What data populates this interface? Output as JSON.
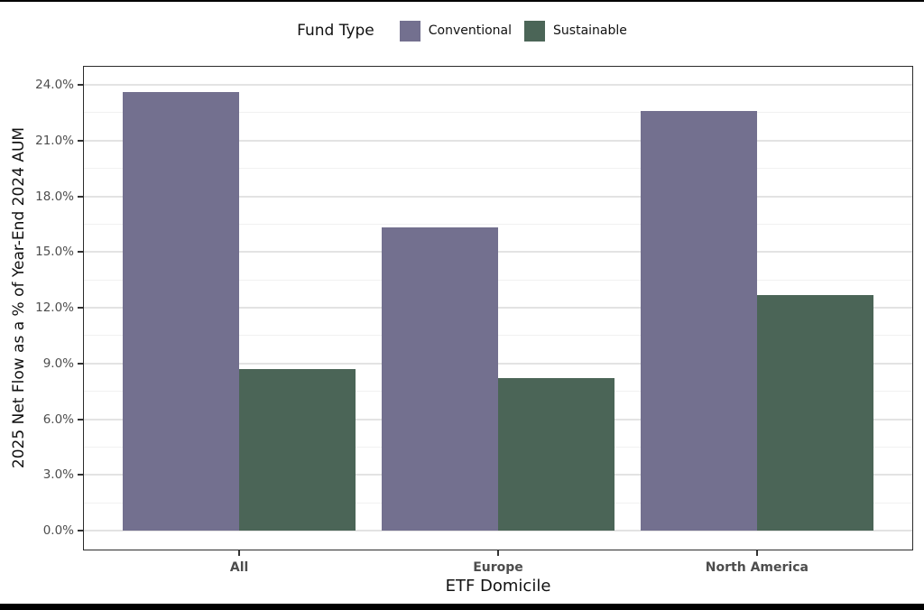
{
  "figure": {
    "background": "#ffffff",
    "top_border_color": "#000000",
    "bottom_bar_color": "#000000"
  },
  "legend": {
    "title": "Fund Type",
    "position": "top-center",
    "items": [
      {
        "label": "Conventional",
        "color": "#73708f"
      },
      {
        "label": "Sustainable",
        "color": "#4b6557"
      }
    ]
  },
  "chart_data": {
    "type": "bar",
    "title": "",
    "categories": [
      "All",
      "Europe",
      "North America"
    ],
    "series": [
      {
        "name": "Conventional",
        "color": "#73708f",
        "values": [
          23.6,
          16.3,
          22.6
        ]
      },
      {
        "name": "Sustainable",
        "color": "#4b6557",
        "values": [
          8.7,
          8.2,
          12.7
        ]
      }
    ],
    "xlabel": "ETF Domicile",
    "ylabel": "2025 Net Flow as a % of Year-End 2024 AUM",
    "ylim": [
      0,
      24
    ],
    "yticks": [
      0,
      3,
      6,
      9,
      12,
      15,
      18,
      21,
      24
    ],
    "ytick_labels": [
      "0.0%",
      "3.0%",
      "6.0%",
      "9.0%",
      "12.0%",
      "15.0%",
      "18.0%",
      "21.0%",
      "24.0%"
    ],
    "minor_yticks": [
      1.5,
      4.5,
      7.5,
      10.5,
      13.5,
      16.5,
      19.5,
      22.5
    ],
    "grid": "major+minor horizontal",
    "legend_position": "top",
    "value_unit": "percent of year-end 2024 AUM"
  },
  "styles": {
    "grid_major_color": "#e3e3e3",
    "grid_minor_color": "#f1f1f1",
    "panel_border_color": "#2b2b2b",
    "tick_mark_color": "#333333",
    "axis_text_color": "#4d4d4d",
    "title_text_color": "#111111"
  }
}
